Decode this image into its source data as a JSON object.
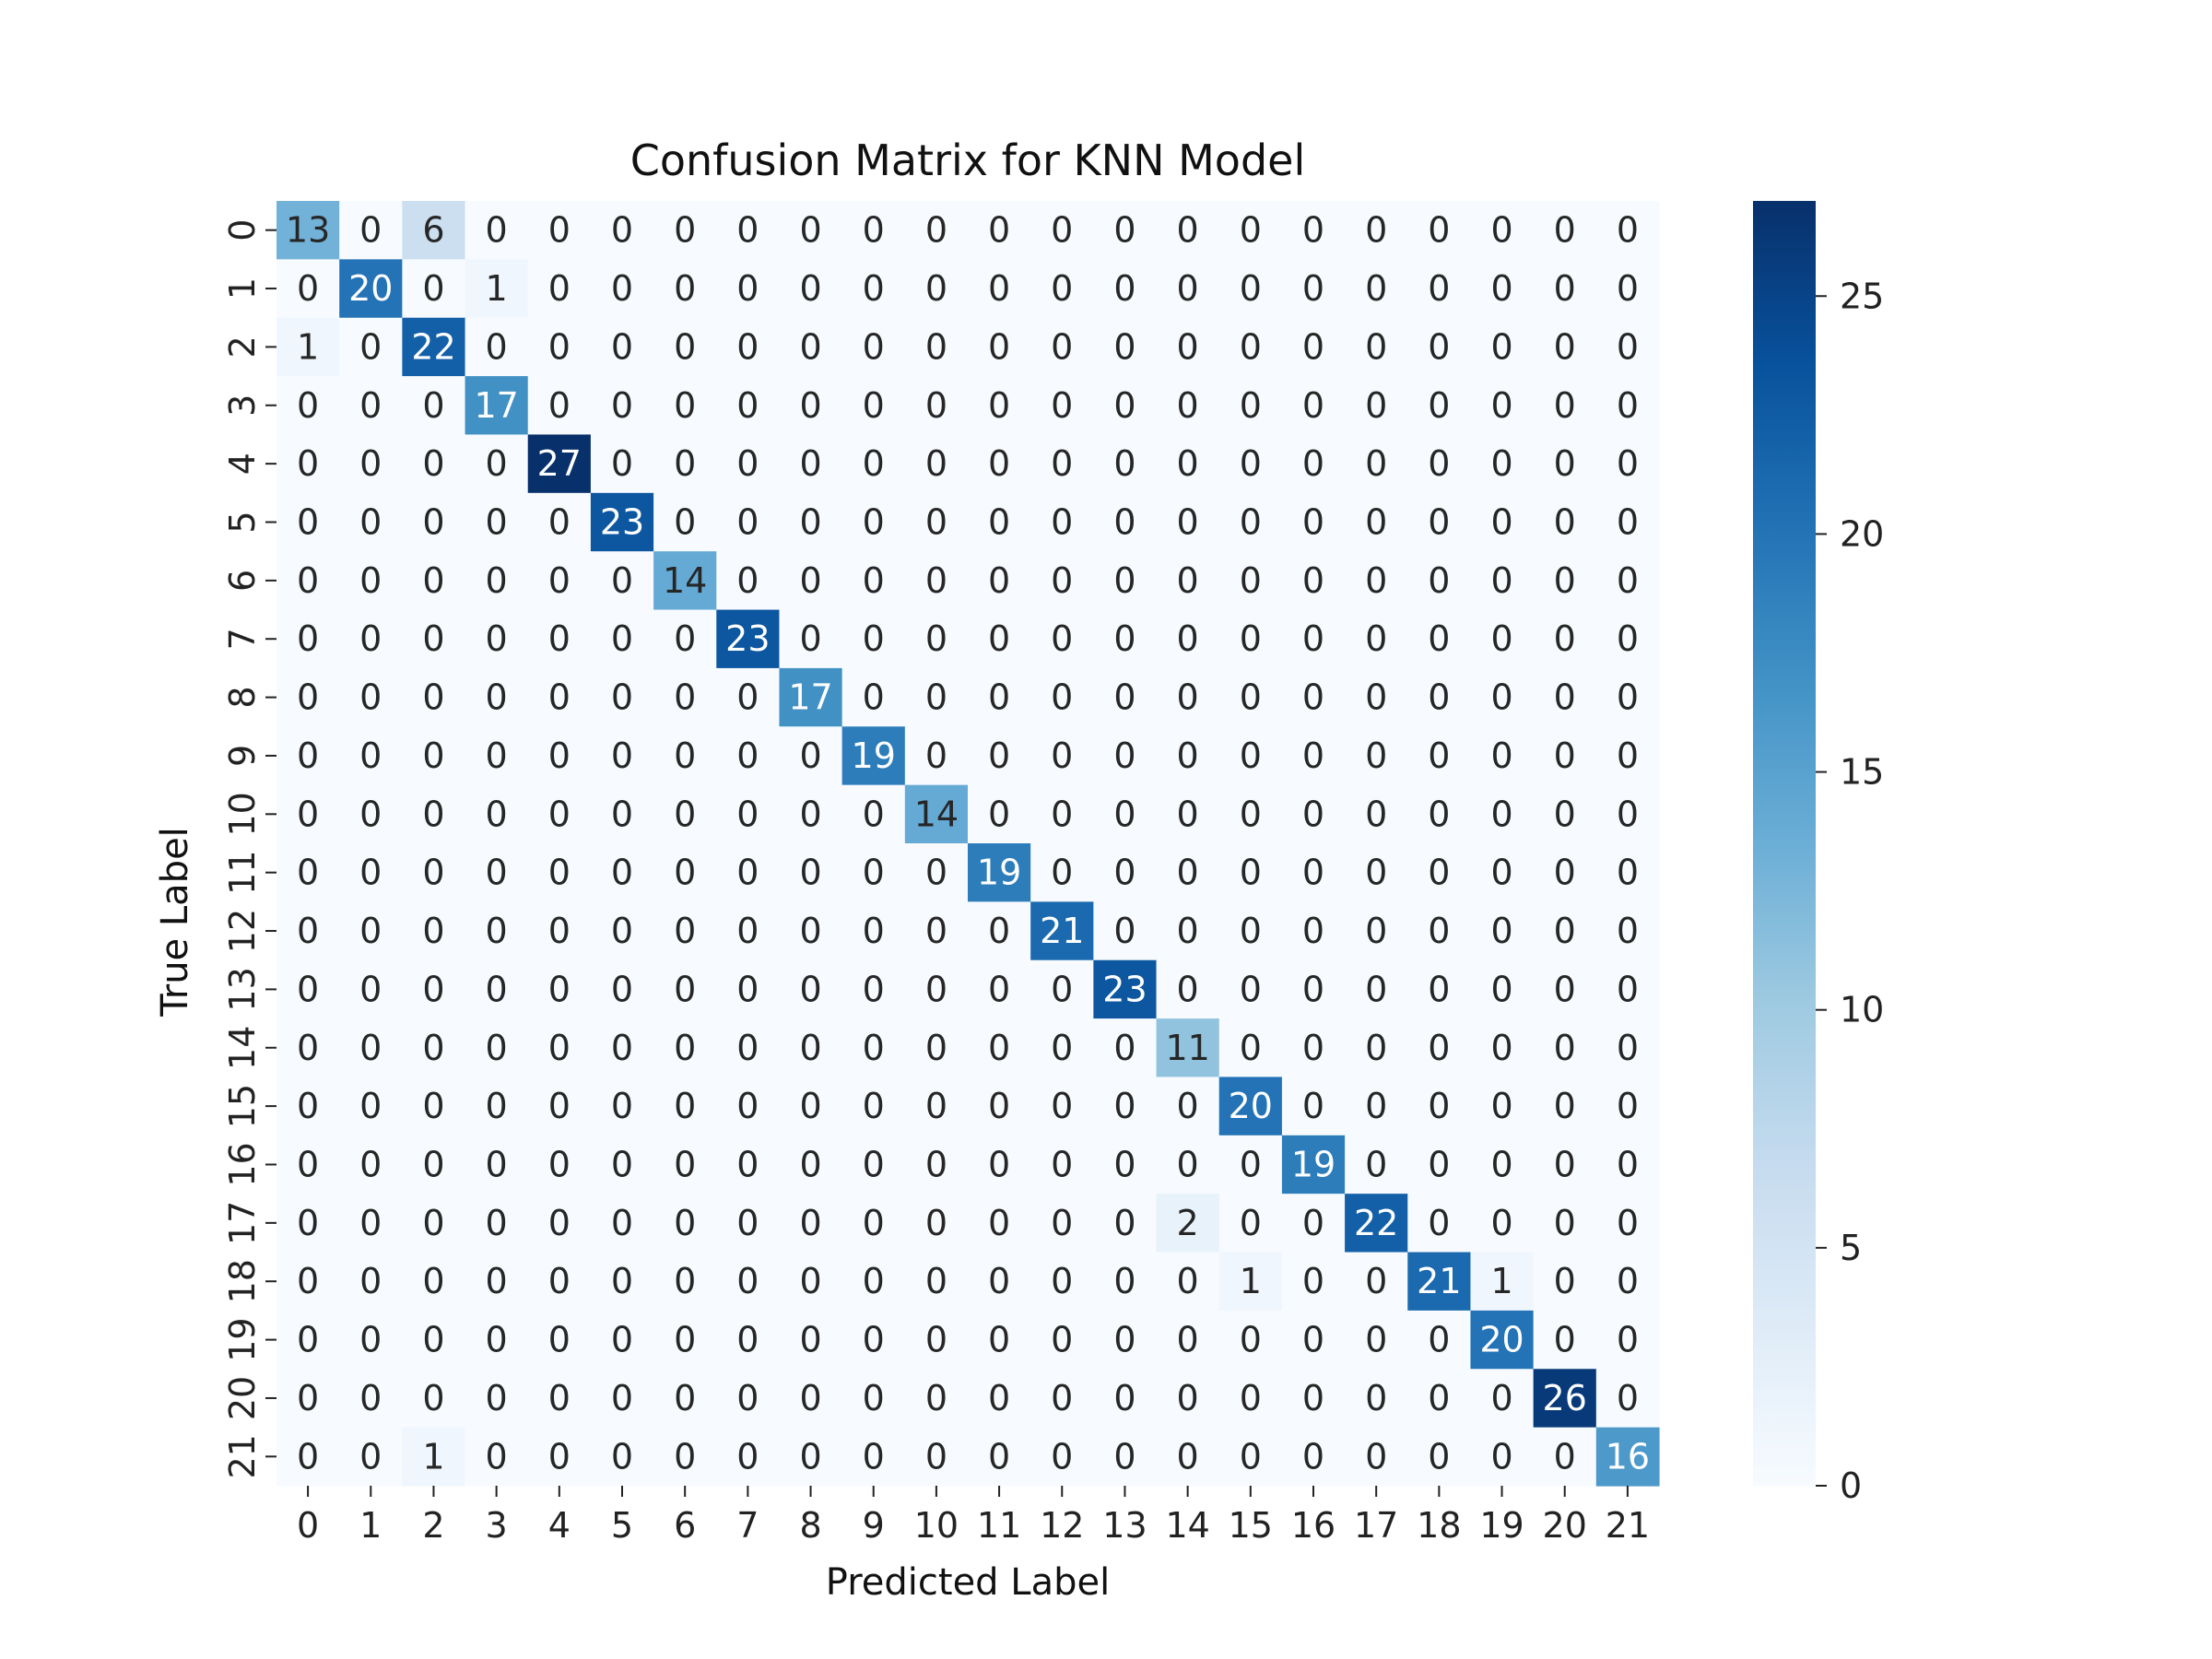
{
  "chart_data": {
    "type": "heatmap",
    "title": "Confusion Matrix for KNN Model",
    "xlabel": "Predicted Label",
    "ylabel": "True Label",
    "x_tick_labels": [
      "0",
      "1",
      "2",
      "3",
      "4",
      "5",
      "6",
      "7",
      "8",
      "9",
      "10",
      "11",
      "12",
      "13",
      "14",
      "15",
      "16",
      "17",
      "18",
      "19",
      "20",
      "21"
    ],
    "y_tick_labels": [
      "0",
      "1",
      "2",
      "3",
      "4",
      "5",
      "6",
      "7",
      "8",
      "9",
      "10",
      "11",
      "12",
      "13",
      "14",
      "15",
      "16",
      "17",
      "18",
      "19",
      "20",
      "21"
    ],
    "matrix": [
      [
        13,
        0,
        6,
        0,
        0,
        0,
        0,
        0,
        0,
        0,
        0,
        0,
        0,
        0,
        0,
        0,
        0,
        0,
        0,
        0,
        0,
        0
      ],
      [
        0,
        20,
        0,
        1,
        0,
        0,
        0,
        0,
        0,
        0,
        0,
        0,
        0,
        0,
        0,
        0,
        0,
        0,
        0,
        0,
        0,
        0
      ],
      [
        1,
        0,
        22,
        0,
        0,
        0,
        0,
        0,
        0,
        0,
        0,
        0,
        0,
        0,
        0,
        0,
        0,
        0,
        0,
        0,
        0,
        0
      ],
      [
        0,
        0,
        0,
        17,
        0,
        0,
        0,
        0,
        0,
        0,
        0,
        0,
        0,
        0,
        0,
        0,
        0,
        0,
        0,
        0,
        0,
        0
      ],
      [
        0,
        0,
        0,
        0,
        27,
        0,
        0,
        0,
        0,
        0,
        0,
        0,
        0,
        0,
        0,
        0,
        0,
        0,
        0,
        0,
        0,
        0
      ],
      [
        0,
        0,
        0,
        0,
        0,
        23,
        0,
        0,
        0,
        0,
        0,
        0,
        0,
        0,
        0,
        0,
        0,
        0,
        0,
        0,
        0,
        0
      ],
      [
        0,
        0,
        0,
        0,
        0,
        0,
        14,
        0,
        0,
        0,
        0,
        0,
        0,
        0,
        0,
        0,
        0,
        0,
        0,
        0,
        0,
        0
      ],
      [
        0,
        0,
        0,
        0,
        0,
        0,
        0,
        23,
        0,
        0,
        0,
        0,
        0,
        0,
        0,
        0,
        0,
        0,
        0,
        0,
        0,
        0
      ],
      [
        0,
        0,
        0,
        0,
        0,
        0,
        0,
        0,
        17,
        0,
        0,
        0,
        0,
        0,
        0,
        0,
        0,
        0,
        0,
        0,
        0,
        0
      ],
      [
        0,
        0,
        0,
        0,
        0,
        0,
        0,
        0,
        0,
        19,
        0,
        0,
        0,
        0,
        0,
        0,
        0,
        0,
        0,
        0,
        0,
        0
      ],
      [
        0,
        0,
        0,
        0,
        0,
        0,
        0,
        0,
        0,
        0,
        14,
        0,
        0,
        0,
        0,
        0,
        0,
        0,
        0,
        0,
        0,
        0
      ],
      [
        0,
        0,
        0,
        0,
        0,
        0,
        0,
        0,
        0,
        0,
        0,
        19,
        0,
        0,
        0,
        0,
        0,
        0,
        0,
        0,
        0,
        0
      ],
      [
        0,
        0,
        0,
        0,
        0,
        0,
        0,
        0,
        0,
        0,
        0,
        0,
        21,
        0,
        0,
        0,
        0,
        0,
        0,
        0,
        0,
        0
      ],
      [
        0,
        0,
        0,
        0,
        0,
        0,
        0,
        0,
        0,
        0,
        0,
        0,
        0,
        23,
        0,
        0,
        0,
        0,
        0,
        0,
        0,
        0
      ],
      [
        0,
        0,
        0,
        0,
        0,
        0,
        0,
        0,
        0,
        0,
        0,
        0,
        0,
        0,
        11,
        0,
        0,
        0,
        0,
        0,
        0,
        0
      ],
      [
        0,
        0,
        0,
        0,
        0,
        0,
        0,
        0,
        0,
        0,
        0,
        0,
        0,
        0,
        0,
        20,
        0,
        0,
        0,
        0,
        0,
        0
      ],
      [
        0,
        0,
        0,
        0,
        0,
        0,
        0,
        0,
        0,
        0,
        0,
        0,
        0,
        0,
        0,
        0,
        19,
        0,
        0,
        0,
        0,
        0
      ],
      [
        0,
        0,
        0,
        0,
        0,
        0,
        0,
        0,
        0,
        0,
        0,
        0,
        0,
        0,
        2,
        0,
        0,
        22,
        0,
        0,
        0,
        0
      ],
      [
        0,
        0,
        0,
        0,
        0,
        0,
        0,
        0,
        0,
        0,
        0,
        0,
        0,
        0,
        0,
        1,
        0,
        0,
        21,
        1,
        0,
        0
      ],
      [
        0,
        0,
        0,
        0,
        0,
        0,
        0,
        0,
        0,
        0,
        0,
        0,
        0,
        0,
        0,
        0,
        0,
        0,
        0,
        20,
        0,
        0
      ],
      [
        0,
        0,
        0,
        0,
        0,
        0,
        0,
        0,
        0,
        0,
        0,
        0,
        0,
        0,
        0,
        0,
        0,
        0,
        0,
        0,
        26,
        0
      ],
      [
        0,
        0,
        1,
        0,
        0,
        0,
        0,
        0,
        0,
        0,
        0,
        0,
        0,
        0,
        0,
        0,
        0,
        0,
        0,
        0,
        0,
        16
      ]
    ],
    "colorbar": {
      "cmap": "Blues",
      "min": 0,
      "max": 27,
      "ticks": [
        0,
        5,
        10,
        15,
        20,
        25
      ],
      "tick_labels": [
        "0",
        "5",
        "10",
        "15",
        "20",
        "25"
      ]
    },
    "annotations": "cell counts",
    "grid": false
  }
}
